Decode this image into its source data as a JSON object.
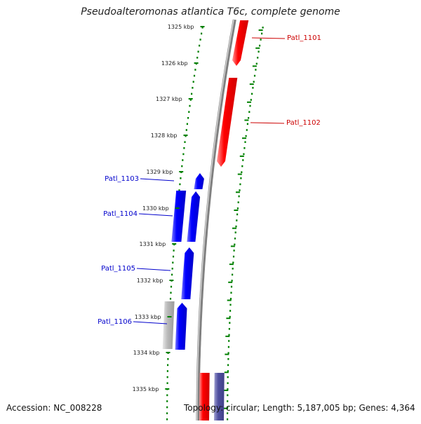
{
  "map": {
    "title": "Pseudoalteromonas atlantica T6c, complete genome",
    "accession": "Accession: NC_008228",
    "summary": "Topology: circular; Length: 5,187,005 bp; Genes: 4,364"
  },
  "colors": {
    "forward_gene": "#ff0000",
    "reverse_gene": "#0000ff",
    "other_feature_gray": "#bbbbbb",
    "other_feature_purple": "#5050a0",
    "tick_marks": "#008000",
    "backbone": "#808080"
  },
  "ruler": {
    "ticks": [
      "1325 kbp",
      "1326 kbp",
      "1327 kbp",
      "1328 kbp",
      "1329 kbp",
      "1330 kbp",
      "1331 kbp",
      "1332 kbp",
      "1333 kbp",
      "1334 kbp",
      "1335 kbp"
    ]
  },
  "genes": [
    {
      "label": "Patl_1101",
      "strand": "forward",
      "color": "#cc0000"
    },
    {
      "label": "Patl_1102",
      "strand": "forward",
      "color": "#cc0000"
    },
    {
      "label": "Patl_1103",
      "strand": "reverse",
      "color": "#0000cc"
    },
    {
      "label": "Patl_1104",
      "strand": "reverse",
      "color": "#0000cc"
    },
    {
      "label": "Patl_1105",
      "strand": "reverse",
      "color": "#0000cc"
    },
    {
      "label": "Patl_1106",
      "strand": "reverse",
      "color": "#0000cc"
    }
  ]
}
